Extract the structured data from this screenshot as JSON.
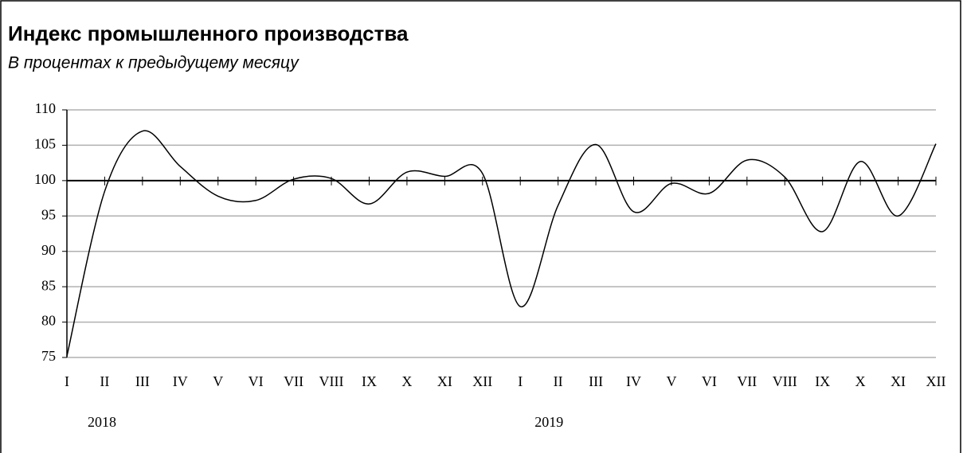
{
  "chart_data": {
    "type": "line",
    "title": "Индекс промышленного производства",
    "subtitle": "В процентах к предыдущему месяцу",
    "categories": [
      "I",
      "II",
      "III",
      "IV",
      "V",
      "VI",
      "VII",
      "VIII",
      "IX",
      "X",
      "XI",
      "XII",
      "I",
      "II",
      "III",
      "IV",
      "V",
      "VI",
      "VII",
      "VIII",
      "IX",
      "X",
      "XI",
      "XII"
    ],
    "year_labels": [
      "2018",
      "2019"
    ],
    "series": [
      {
        "color": "#000000",
        "values": [
          75.2,
          98.5,
          107,
          102,
          97.8,
          97.2,
          100.2,
          100.3,
          96.7,
          101.2,
          100.6,
          101.0,
          82.2,
          96.5,
          105.1,
          95.6,
          99.6,
          98.2,
          102.9,
          100.5,
          92.8,
          102.7,
          95.0,
          105.2
        ]
      }
    ],
    "ylim": [
      75,
      110
    ],
    "yticks": [
      75,
      80,
      85,
      90,
      95,
      100,
      105,
      110
    ],
    "grid": true,
    "x_axis_crosses": 100
  }
}
